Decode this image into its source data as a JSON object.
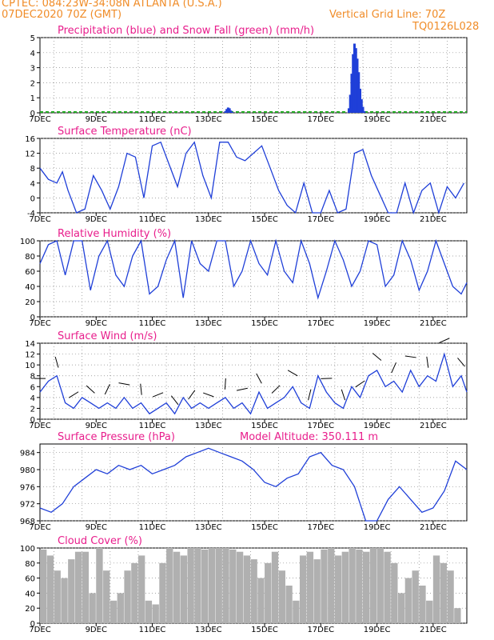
{
  "header": {
    "line1": "CPTEC:   084:23W-34:08N  ATLANTA (U.S.A.)",
    "line2": "07DEC2020 70Z (GMT)",
    "right1": "Vertical Grid Line: 70Z",
    "right2": "TQ0126L028"
  },
  "colors": {
    "line": "#1f3fd8",
    "snow": "#22aa22",
    "cloud": "#b0b0b0",
    "title": "#e81e8c",
    "header": "#f08c28"
  },
  "x_axis": {
    "labels": [
      "7DEC",
      "9DEC",
      "11DEC",
      "13DEC",
      "15DEC",
      "17DEC",
      "19DEC",
      "21DEC"
    ],
    "label_days": [
      0,
      2,
      4,
      6,
      8,
      10,
      12,
      14
    ],
    "start_day": 0,
    "end_day": 15.2
  },
  "chart_data": [
    {
      "id": "precip",
      "type": "bar",
      "title": "Precipitation (blue) and Snow Fall (green) (mm/h)",
      "ylim": [
        0,
        5
      ],
      "yticks": [
        0,
        1,
        2,
        3,
        4,
        5
      ],
      "series": [
        {
          "name": "Precipitation",
          "values": [
            [
              6.6,
              0.1
            ],
            [
              6.65,
              0.25
            ],
            [
              6.7,
              0.35
            ],
            [
              6.75,
              0.3
            ],
            [
              6.8,
              0.15
            ],
            [
              6.85,
              0.05
            ],
            [
              11.0,
              0.3
            ],
            [
              11.05,
              1.2
            ],
            [
              11.1,
              2.6
            ],
            [
              11.15,
              3.9
            ],
            [
              11.2,
              4.6
            ],
            [
              11.25,
              4.3
            ],
            [
              11.3,
              3.6
            ],
            [
              11.35,
              2.7
            ],
            [
              11.4,
              1.6
            ],
            [
              11.45,
              0.9
            ],
            [
              11.5,
              0.4
            ],
            [
              11.55,
              0.1
            ]
          ]
        }
      ]
    },
    {
      "id": "temp",
      "type": "line",
      "title": "Surface Temperature (nC)",
      "ylim": [
        -4,
        16
      ],
      "yticks": [
        -4,
        0,
        4,
        8,
        12,
        16
      ],
      "x": [
        0,
        0.3,
        0.6,
        0.8,
        1.0,
        1.3,
        1.6,
        1.9,
        2.2,
        2.5,
        2.8,
        3.1,
        3.4,
        3.7,
        4.0,
        4.3,
        4.6,
        4.9,
        5.2,
        5.5,
        5.8,
        6.1,
        6.4,
        6.7,
        7.0,
        7.3,
        7.6,
        7.9,
        8.2,
        8.5,
        8.8,
        9.1,
        9.4,
        9.7,
        10.0,
        10.3,
        10.6,
        10.9,
        11.2,
        11.5,
        11.8,
        12.1,
        12.4,
        12.7,
        13.0,
        13.3,
        13.6,
        13.9,
        14.2,
        14.5,
        14.8,
        15.1
      ],
      "y": [
        8,
        5,
        4,
        7,
        2,
        -4,
        -3,
        6,
        2,
        -3,
        3,
        12,
        11,
        0,
        14,
        15,
        9,
        3,
        12,
        15,
        6,
        0,
        15,
        15,
        11,
        10,
        12,
        14,
        8,
        2,
        -2,
        -4,
        4,
        -4,
        -4,
        2,
        -4,
        -3,
        12,
        13,
        6,
        1,
        -4,
        -5,
        4,
        -4,
        2,
        4,
        -4,
        3,
        0,
        4
      ]
    },
    {
      "id": "rh",
      "type": "line",
      "title": "Relative Humidity (%)",
      "ylim": [
        0,
        100
      ],
      "yticks": [
        0,
        20,
        40,
        60,
        80,
        100
      ],
      "x": [
        0,
        0.3,
        0.6,
        0.9,
        1.2,
        1.5,
        1.8,
        2.1,
        2.4,
        2.7,
        3.0,
        3.3,
        3.6,
        3.9,
        4.2,
        4.5,
        4.8,
        5.1,
        5.4,
        5.7,
        6.0,
        6.3,
        6.6,
        6.9,
        7.2,
        7.5,
        7.8,
        8.1,
        8.4,
        8.7,
        9.0,
        9.3,
        9.6,
        9.9,
        10.2,
        10.5,
        10.8,
        11.1,
        11.4,
        11.7,
        12.0,
        12.3,
        12.6,
        12.9,
        13.2,
        13.5,
        13.8,
        14.1,
        14.4,
        14.7,
        15.0,
        15.2
      ],
      "y": [
        70,
        95,
        100,
        55,
        100,
        100,
        35,
        80,
        100,
        55,
        40,
        80,
        100,
        30,
        40,
        75,
        100,
        25,
        100,
        70,
        60,
        100,
        100,
        40,
        60,
        100,
        70,
        55,
        100,
        60,
        45,
        100,
        70,
        25,
        60,
        100,
        75,
        40,
        60,
        100,
        95,
        40,
        55,
        100,
        75,
        35,
        60,
        100,
        70,
        40,
        30,
        45
      ]
    },
    {
      "id": "wind",
      "type": "line",
      "title": "Surface Wind (m/s)",
      "ylim": [
        0,
        14
      ],
      "yticks": [
        0,
        2,
        4,
        6,
        8,
        10,
        12,
        14
      ],
      "x": [
        0,
        0.3,
        0.6,
        0.9,
        1.2,
        1.5,
        1.8,
        2.1,
        2.4,
        2.7,
        3.0,
        3.3,
        3.6,
        3.9,
        4.2,
        4.5,
        4.8,
        5.1,
        5.4,
        5.7,
        6.0,
        6.3,
        6.6,
        6.9,
        7.2,
        7.5,
        7.8,
        8.1,
        8.4,
        8.7,
        9.0,
        9.3,
        9.6,
        9.9,
        10.2,
        10.5,
        10.8,
        11.1,
        11.4,
        11.7,
        12.0,
        12.3,
        12.6,
        12.9,
        13.2,
        13.5,
        13.8,
        14.1,
        14.4,
        14.7,
        15.0,
        15.2
      ],
      "y": [
        5,
        7,
        8,
        3,
        2,
        4,
        3,
        2,
        3,
        2,
        4,
        2,
        3,
        1,
        2,
        3,
        1,
        4,
        2,
        3,
        2,
        3,
        4,
        2,
        3,
        1,
        5,
        2,
        3,
        4,
        6,
        3,
        2,
        8,
        5,
        3,
        2,
        6,
        4,
        8,
        9,
        6,
        7,
        5,
        9,
        6,
        8,
        7,
        12,
        6,
        8,
        5
      ]
    },
    {
      "id": "pres",
      "type": "line",
      "title": "Surface Pressure (hPa)",
      "subtitle": "Model Altitude: 350.111  m",
      "ylim": [
        968,
        986
      ],
      "yticks": [
        968,
        972,
        976,
        980,
        984
      ],
      "x": [
        0,
        0.4,
        0.8,
        1.2,
        1.6,
        2.0,
        2.4,
        2.8,
        3.2,
        3.6,
        4.0,
        4.4,
        4.8,
        5.2,
        5.6,
        6.0,
        6.4,
        6.8,
        7.2,
        7.6,
        8.0,
        8.4,
        8.8,
        9.2,
        9.6,
        10.0,
        10.4,
        10.8,
        11.2,
        11.6,
        12.0,
        12.4,
        12.8,
        13.2,
        13.6,
        14.0,
        14.4,
        14.8,
        15.2
      ],
      "y": [
        971,
        970,
        972,
        976,
        978,
        980,
        979,
        981,
        980,
        981,
        979,
        980,
        981,
        983,
        984,
        985,
        984,
        983,
        982,
        980,
        977,
        976,
        978,
        979,
        983,
        984,
        981,
        980,
        976,
        968,
        966,
        973,
        976,
        973,
        970,
        971,
        975,
        982,
        980
      ]
    },
    {
      "id": "cloud",
      "type": "bar",
      "title": "Cloud Cover (%)",
      "ylim": [
        0,
        100
      ],
      "yticks": [
        0,
        20,
        40,
        60,
        80,
        100
      ],
      "x": [
        0.0,
        0.25,
        0.5,
        0.75,
        1.0,
        1.25,
        1.5,
        1.75,
        2.0,
        2.25,
        2.5,
        2.75,
        3.0,
        3.25,
        3.5,
        3.75,
        4.0,
        4.25,
        4.5,
        4.75,
        5.0,
        5.25,
        5.5,
        5.75,
        6.0,
        6.25,
        6.5,
        6.75,
        7.0,
        7.25,
        7.5,
        7.75,
        8.0,
        8.25,
        8.5,
        8.75,
        9.0,
        9.25,
        9.5,
        9.75,
        10.0,
        10.25,
        10.5,
        10.75,
        11.0,
        11.25,
        11.5,
        11.75,
        12.0,
        12.25,
        12.5,
        12.75,
        13.0,
        13.25,
        13.5,
        13.75,
        14.0,
        14.25,
        14.5,
        14.75,
        15.0
      ],
      "y": [
        98,
        90,
        70,
        60,
        85,
        95,
        95,
        40,
        100,
        70,
        30,
        40,
        70,
        80,
        90,
        30,
        25,
        80,
        100,
        95,
        90,
        100,
        100,
        98,
        100,
        100,
        100,
        98,
        95,
        90,
        85,
        60,
        80,
        95,
        70,
        50,
        30,
        90,
        95,
        85,
        98,
        100,
        90,
        95,
        100,
        98,
        95,
        100,
        100,
        95,
        80,
        40,
        60,
        70,
        50,
        30,
        90,
        80,
        70,
        20,
        0
      ]
    }
  ]
}
